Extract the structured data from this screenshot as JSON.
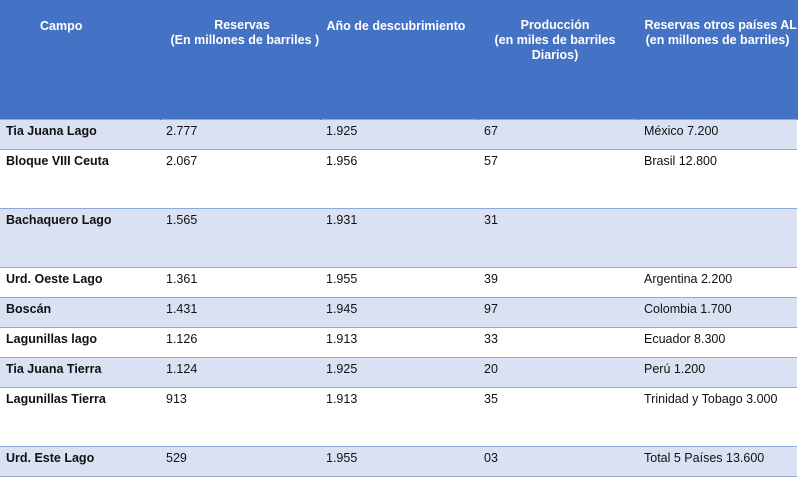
{
  "table": {
    "headers": {
      "campo": [
        "Campo"
      ],
      "reservas": [
        "Reservas",
        "(En millones de barriles )"
      ],
      "anio": [
        "Año de descubrimiento"
      ],
      "produccion": [
        "Producción",
        "(en miles de barriles",
        "Diarios)"
      ],
      "otros": [
        "Reservas otros países AL",
        "(en millones de barriles)"
      ]
    },
    "rows": [
      {
        "campo": "Tia Juana Lago",
        "reservas": "2.777",
        "anio": "1.925",
        "produccion": "67",
        "otros": "México 7.200"
      },
      {
        "campo": "Bloque VIII Ceuta",
        "reservas": "2.067",
        "anio": "1.956",
        "produccion": "57",
        "otros": "Brasil 12.800"
      },
      {
        "campo": "Bachaquero Lago",
        "reservas": "1.565",
        "anio": "1.931",
        "produccion": "31",
        "otros": ""
      },
      {
        "campo": "Urd. Oeste Lago",
        "reservas": "1.361",
        "anio": "1.955",
        "produccion": "39",
        "otros": "Argentina 2.200"
      },
      {
        "campo": "Boscán",
        "reservas": "1.431",
        "anio": "1.945",
        "produccion": "97",
        "otros": "Colombia 1.700"
      },
      {
        "campo": "Lagunillas lago",
        "reservas": "1.126",
        "anio": "1.913",
        "produccion": "33",
        "otros": "Ecuador 8.300"
      },
      {
        "campo": "Tia Juana Tierra",
        "reservas": "1.124",
        "anio": "1.925",
        "produccion": "20",
        "otros": "Perú 1.200"
      },
      {
        "campo": "Lagunillas Tierra",
        "reservas": "913",
        "anio": "1.913",
        "produccion": "35",
        "otros": "Trinidad y Tobago 3.000"
      },
      {
        "campo": "Urd. Este Lago",
        "reservas": "529",
        "anio": "1.955",
        "produccion": "03",
        "otros": "Total 5 Países 13.600"
      }
    ]
  },
  "colors": {
    "header_bg": "#4472c4",
    "band_bg": "#d9e1f2",
    "border": "#8eaadb"
  }
}
